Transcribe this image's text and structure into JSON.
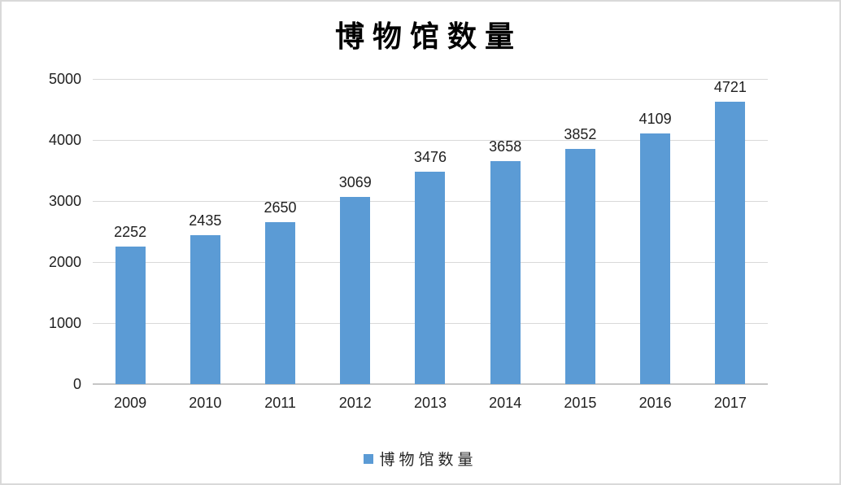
{
  "chart_data": {
    "type": "bar",
    "title": "博物馆数量",
    "categories": [
      "2009",
      "2010",
      "2011",
      "2012",
      "2013",
      "2014",
      "2015",
      "2016",
      "2017"
    ],
    "values": [
      2252,
      2435,
      2650,
      3069,
      3476,
      3658,
      3852,
      4109,
      4721
    ],
    "xlabel": "",
    "ylabel": "",
    "ylim": [
      0,
      5000
    ],
    "yticks": [
      0,
      1000,
      2000,
      3000,
      4000,
      5000
    ],
    "grid": true,
    "data_labels": true,
    "legend": {
      "label": "博物馆数量",
      "position": "bottom"
    },
    "colors": {
      "bar": "#5b9bd5",
      "gridline": "#d9d9d9",
      "axis_line": "#c6c6c6",
      "text": "#1f1f1f",
      "title": "#000000",
      "border": "#d9d9d9",
      "background": "#ffffff"
    }
  }
}
